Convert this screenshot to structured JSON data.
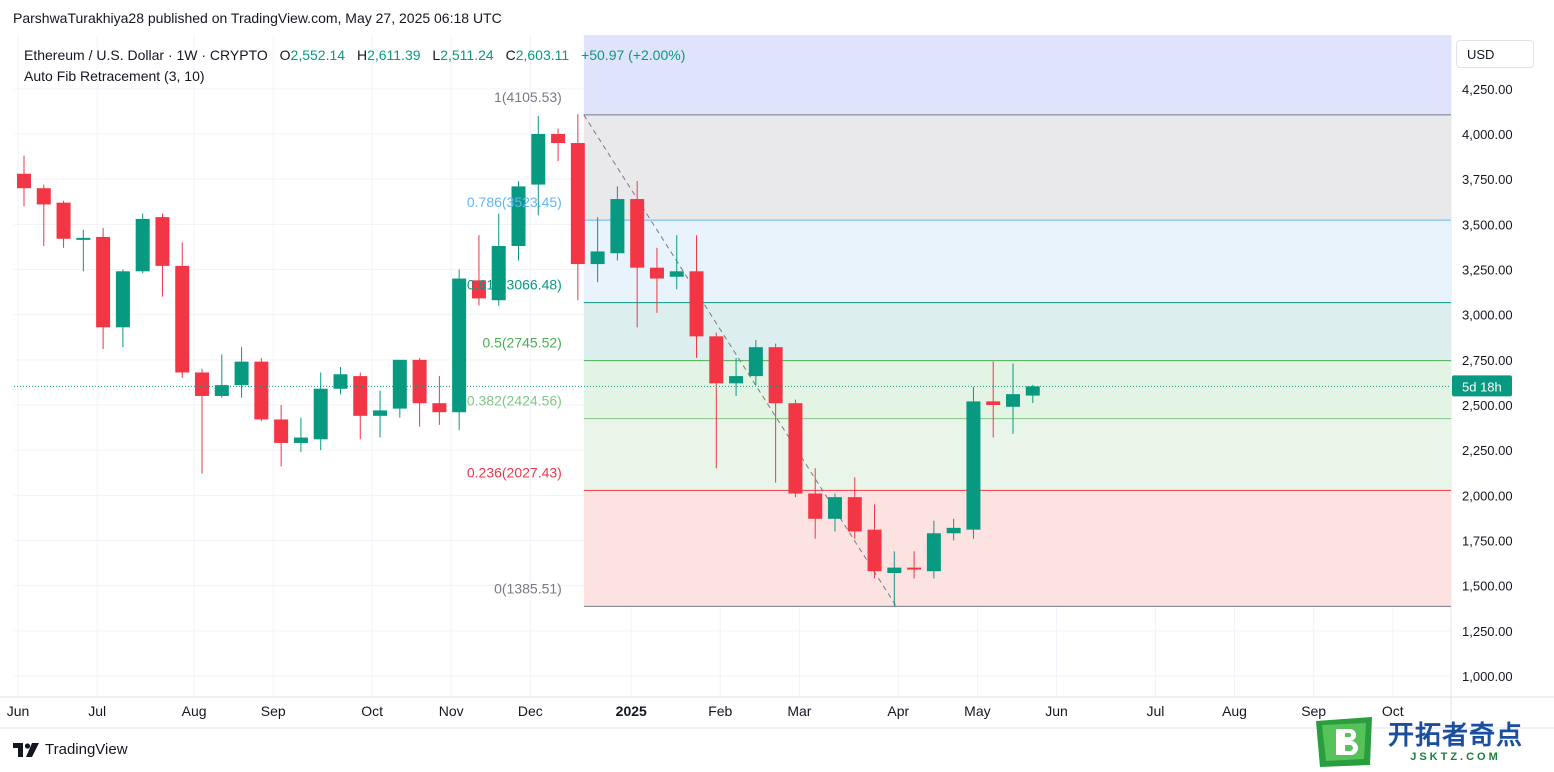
{
  "publisher": "ParshwaTurakhiya28 published on TradingView.com, May 27, 2025 06:18 UTC",
  "legend": {
    "symbol": "Ethereum / U.S. Dollar · 1W · CRYPTO",
    "open_label": "O",
    "open": "2,552.14",
    "high_label": "H",
    "high": "2,611.39",
    "low_label": "L",
    "low": "2,511.24",
    "close_label": "C",
    "close": "2,603.11",
    "change": "+50.97 (+2.00%)",
    "indicator": "Auto Fib Retracement (3, 10)"
  },
  "currency": "USD",
  "footer": {
    "brand": "TradingView"
  },
  "watermark": {
    "cn": "开拓者奇点",
    "site": "JSKTZ.COM"
  },
  "colors": {
    "up": "#089981",
    "down": "#f23645",
    "fib_ray": "#787b86"
  },
  "chart_data": {
    "type": "candlestick",
    "ylim": [
      900,
      4450
    ],
    "y_ticks": [
      "1,000.00",
      "1,250.00",
      "1,500.00",
      "1,750.00",
      "2,000.00",
      "2,250.00",
      "2,500.00",
      "2,750.00",
      "3,000.00",
      "3,250.00",
      "3,500.00",
      "3,750.00",
      "4,000.00",
      "4,250.00"
    ],
    "x_ticks": [
      {
        "label": "Jun",
        "bar": -0.3
      },
      {
        "label": "Jul",
        "bar": 3.7
      },
      {
        "label": "Aug",
        "bar": 8.6
      },
      {
        "label": "Sep",
        "bar": 12.6
      },
      {
        "label": "Oct",
        "bar": 17.6
      },
      {
        "label": "Nov",
        "bar": 21.6
      },
      {
        "label": "Dec",
        "bar": 25.6
      },
      {
        "label": "2025",
        "bold": true,
        "bar": 30.7
      },
      {
        "label": "Feb",
        "bar": 35.2
      },
      {
        "label": "Mar",
        "bar": 39.2
      },
      {
        "label": "Apr",
        "bar": 44.2
      },
      {
        "label": "May",
        "bar": 48.2
      },
      {
        "label": "Jun",
        "bar": 52.2
      },
      {
        "label": "Jul",
        "bar": 57.2
      },
      {
        "label": "Aug",
        "bar": 61.2
      },
      {
        "label": "Sep",
        "bar": 65.2
      },
      {
        "label": "Oct",
        "bar": 69.2
      }
    ],
    "current_price": 2603.11,
    "countdown_label": "5d 18h",
    "candles": [
      {
        "o": 3780,
        "h": 3880,
        "l": 3600,
        "c": 3700
      },
      {
        "o": 3700,
        "h": 3720,
        "l": 3380,
        "c": 3610
      },
      {
        "o": 3620,
        "h": 3630,
        "l": 3370,
        "c": 3420
      },
      {
        "o": 3420,
        "h": 3470,
        "l": 3240,
        "c": 3425
      },
      {
        "o": 3430,
        "h": 3480,
        "l": 2810,
        "c": 2930
      },
      {
        "o": 2930,
        "h": 3250,
        "l": 2820,
        "c": 3240
      },
      {
        "o": 3240,
        "h": 3560,
        "l": 3230,
        "c": 3530
      },
      {
        "o": 3540,
        "h": 3560,
        "l": 3100,
        "c": 3270
      },
      {
        "o": 3270,
        "h": 3400,
        "l": 2650,
        "c": 2680
      },
      {
        "o": 2680,
        "h": 2700,
        "l": 2120,
        "c": 2550
      },
      {
        "o": 2550,
        "h": 2780,
        "l": 2540,
        "c": 2610
      },
      {
        "o": 2610,
        "h": 2820,
        "l": 2540,
        "c": 2740
      },
      {
        "o": 2740,
        "h": 2760,
        "l": 2410,
        "c": 2420
      },
      {
        "o": 2420,
        "h": 2500,
        "l": 2160,
        "c": 2290
      },
      {
        "o": 2290,
        "h": 2430,
        "l": 2240,
        "c": 2320
      },
      {
        "o": 2310,
        "h": 2680,
        "l": 2250,
        "c": 2590
      },
      {
        "o": 2590,
        "h": 2710,
        "l": 2560,
        "c": 2670
      },
      {
        "o": 2660,
        "h": 2680,
        "l": 2310,
        "c": 2440
      },
      {
        "o": 2440,
        "h": 2580,
        "l": 2320,
        "c": 2470
      },
      {
        "o": 2480,
        "h": 2730,
        "l": 2430,
        "c": 2750
      },
      {
        "o": 2750,
        "h": 2760,
        "l": 2380,
        "c": 2510
      },
      {
        "o": 2510,
        "h": 2660,
        "l": 2390,
        "c": 2460
      },
      {
        "o": 2460,
        "h": 3250,
        "l": 2360,
        "c": 3200
      },
      {
        "o": 3190,
        "h": 3440,
        "l": 3050,
        "c": 3090
      },
      {
        "o": 3080,
        "h": 3560,
        "l": 3050,
        "c": 3380
      },
      {
        "o": 3380,
        "h": 3740,
        "l": 3300,
        "c": 3710
      },
      {
        "o": 3720,
        "h": 4100,
        "l": 3550,
        "c": 4000
      },
      {
        "o": 4000,
        "h": 4030,
        "l": 3850,
        "c": 3950
      },
      {
        "o": 3950,
        "h": 4110,
        "l": 3080,
        "c": 3280
      },
      {
        "o": 3280,
        "h": 3540,
        "l": 3180,
        "c": 3350
      },
      {
        "o": 3340,
        "h": 3710,
        "l": 3300,
        "c": 3640
      },
      {
        "o": 3640,
        "h": 3740,
        "l": 2930,
        "c": 3260
      },
      {
        "o": 3260,
        "h": 3370,
        "l": 3010,
        "c": 3200
      },
      {
        "o": 3210,
        "h": 3440,
        "l": 3140,
        "c": 3240
      },
      {
        "o": 3240,
        "h": 3440,
        "l": 2760,
        "c": 2880
      },
      {
        "o": 2880,
        "h": 2900,
        "l": 2150,
        "c": 2620
      },
      {
        "o": 2620,
        "h": 2760,
        "l": 2550,
        "c": 2660
      },
      {
        "o": 2660,
        "h": 2860,
        "l": 2610,
        "c": 2820
      },
      {
        "o": 2820,
        "h": 2840,
        "l": 2070,
        "c": 2510
      },
      {
        "o": 2510,
        "h": 2530,
        "l": 1990,
        "c": 2010
      },
      {
        "o": 2010,
        "h": 2150,
        "l": 1760,
        "c": 1870
      },
      {
        "o": 1870,
        "h": 2010,
        "l": 1800,
        "c": 1990
      },
      {
        "o": 1990,
        "h": 2100,
        "l": 1760,
        "c": 1800
      },
      {
        "o": 1810,
        "h": 1950,
        "l": 1540,
        "c": 1580
      },
      {
        "o": 1570,
        "h": 1690,
        "l": 1385,
        "c": 1600
      },
      {
        "o": 1600,
        "h": 1690,
        "l": 1540,
        "c": 1590
      },
      {
        "o": 1580,
        "h": 1860,
        "l": 1540,
        "c": 1790
      },
      {
        "o": 1790,
        "h": 1870,
        "l": 1750,
        "c": 1820
      },
      {
        "o": 1810,
        "h": 2600,
        "l": 1760,
        "c": 2520
      },
      {
        "o": 2520,
        "h": 2740,
        "l": 2320,
        "c": 2500
      },
      {
        "o": 2490,
        "h": 2730,
        "l": 2340,
        "c": 2560
      },
      {
        "o": 2552.14,
        "h": 2611.39,
        "l": 2511.24,
        "c": 2603.11
      }
    ],
    "fib": {
      "start_bar": 28,
      "end_bar": 44.1,
      "levels": [
        {
          "ratio": "1",
          "price": 4105.53,
          "label": "1(4105.53)",
          "color": "#787b86",
          "fill": "#e9e9eb"
        },
        {
          "ratio": "0.786",
          "price": 3523.45,
          "label": "0.786(3523.45)",
          "color": "#64b5f6",
          "fill": "#e8f3fc"
        },
        {
          "ratio": "0.618",
          "price": 3066.48,
          "label": "0.618(3066.48)",
          "color": "#089981",
          "fill": "#dcefee"
        },
        {
          "ratio": "0.5",
          "price": 2745.52,
          "label": "0.5(2745.52)",
          "color": "#4caf50",
          "fill": "#e3f3e4"
        },
        {
          "ratio": "0.382",
          "price": 2424.56,
          "label": "0.382(2424.56)",
          "color": "#81c784",
          "fill": "#eaf5ea"
        },
        {
          "ratio": "0.236",
          "price": 2027.43,
          "label": "0.236(2027.43)",
          "color": "#f23645",
          "fill": "#fde2e2"
        },
        {
          "ratio": "0",
          "price": 1385.51,
          "label": "0(1385.51)",
          "color": "#787b86",
          "fill": null
        }
      ],
      "above_fill": "#dfe4fc"
    }
  }
}
